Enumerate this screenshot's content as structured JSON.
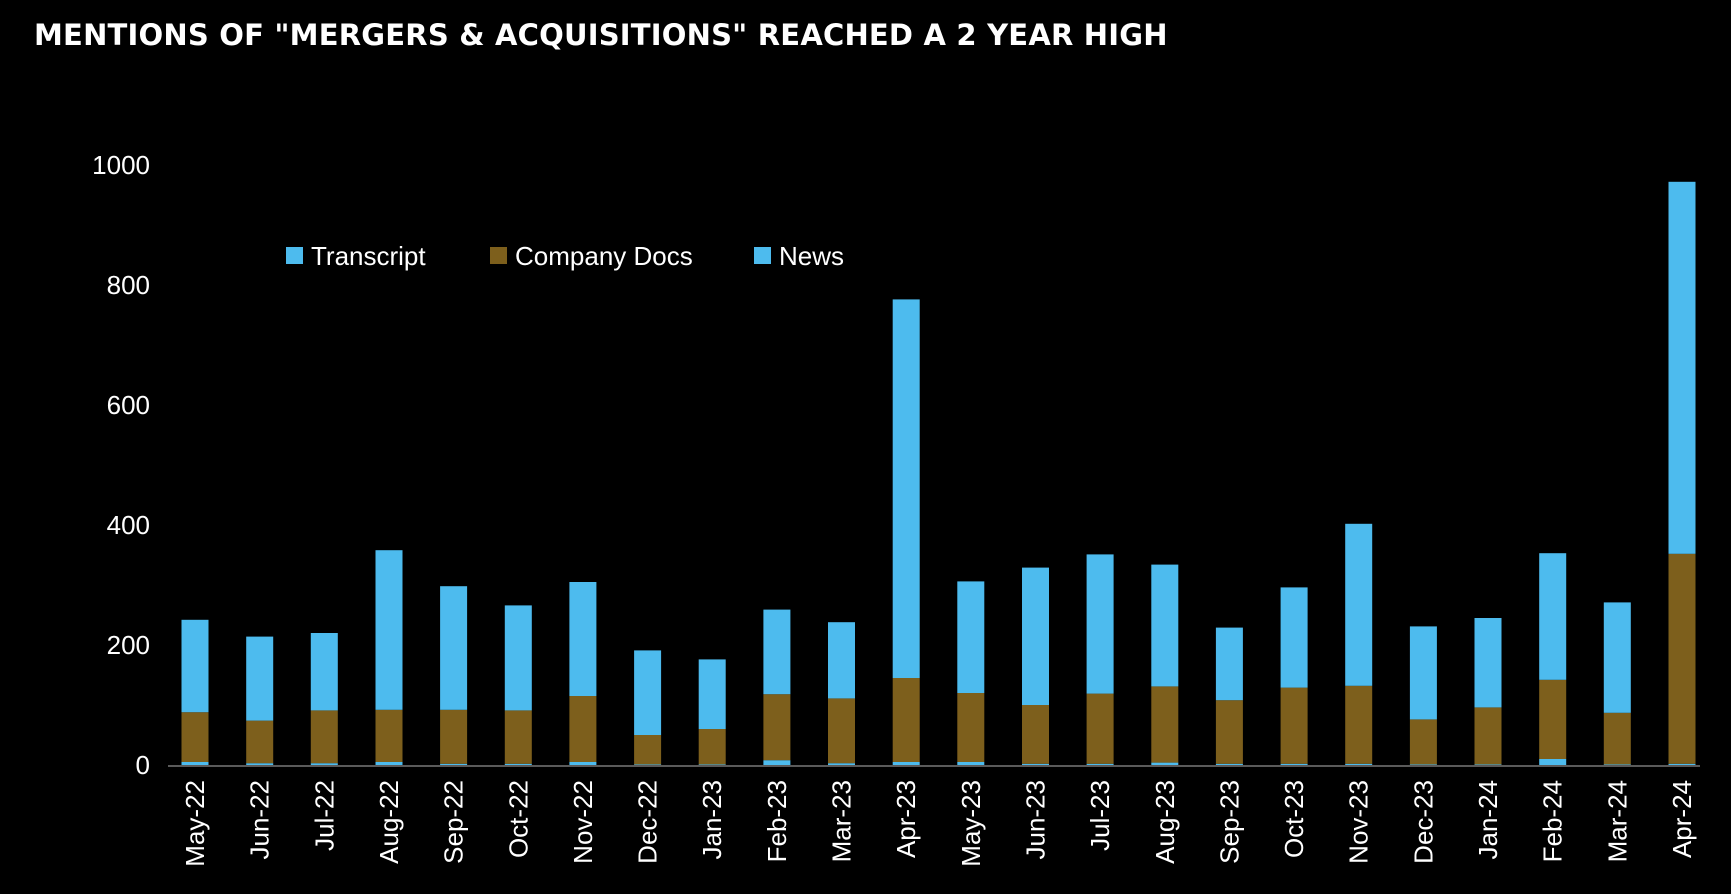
{
  "title": "MENTIONS OF \"MERGERS & ACQUISITIONS\" REACHED A 2 YEAR HIGH",
  "chart_data": {
    "type": "bar",
    "stacked": true,
    "title": "MENTIONS OF \"MERGERS & ACQUISITIONS\" REACHED A 2 YEAR HIGH",
    "xlabel": "",
    "ylabel": "",
    "ylim": [
      0,
      1000
    ],
    "yticks": [
      "0",
      "200",
      "400",
      "600",
      "800",
      "1000"
    ],
    "grid": false,
    "legend_position": "top-left",
    "categories": [
      "May-22",
      "Jun-22",
      "Jul-22",
      "Aug-22",
      "Sep-22",
      "Oct-22",
      "Nov-22",
      "Dec-22",
      "Jan-23",
      "Feb-23",
      "Mar-23",
      "Apr-23",
      "May-23",
      "Jun-23",
      "Jul-23",
      "Aug-23",
      "Sep-23",
      "Oct-23",
      "Nov-23",
      "Dec-23",
      "Jan-24",
      "Feb-24",
      "Mar-24",
      "Apr-24"
    ],
    "series": [
      {
        "name": "Transcript",
        "color": "#4dbbee",
        "values": [
          5,
          3,
          3,
          5,
          2,
          2,
          5,
          1,
          1,
          8,
          3,
          5,
          5,
          2,
          2,
          4,
          2,
          2,
          2,
          1,
          1,
          10,
          1,
          2
        ]
      },
      {
        "name": "Company Docs",
        "color": "#7d5f1c",
        "values": [
          83,
          71,
          88,
          87,
          90,
          89,
          110,
          49,
          59,
          110,
          108,
          140,
          115,
          98,
          117,
          127,
          106,
          127,
          130,
          75,
          95,
          132,
          86,
          350
        ]
      },
      {
        "name": "News",
        "color": "#4dbbee",
        "values": [
          154,
          140,
          129,
          266,
          206,
          175,
          190,
          141,
          116,
          141,
          127,
          631,
          186,
          229,
          232,
          203,
          121,
          167,
          270,
          155,
          149,
          211,
          184,
          620
        ]
      }
    ]
  }
}
